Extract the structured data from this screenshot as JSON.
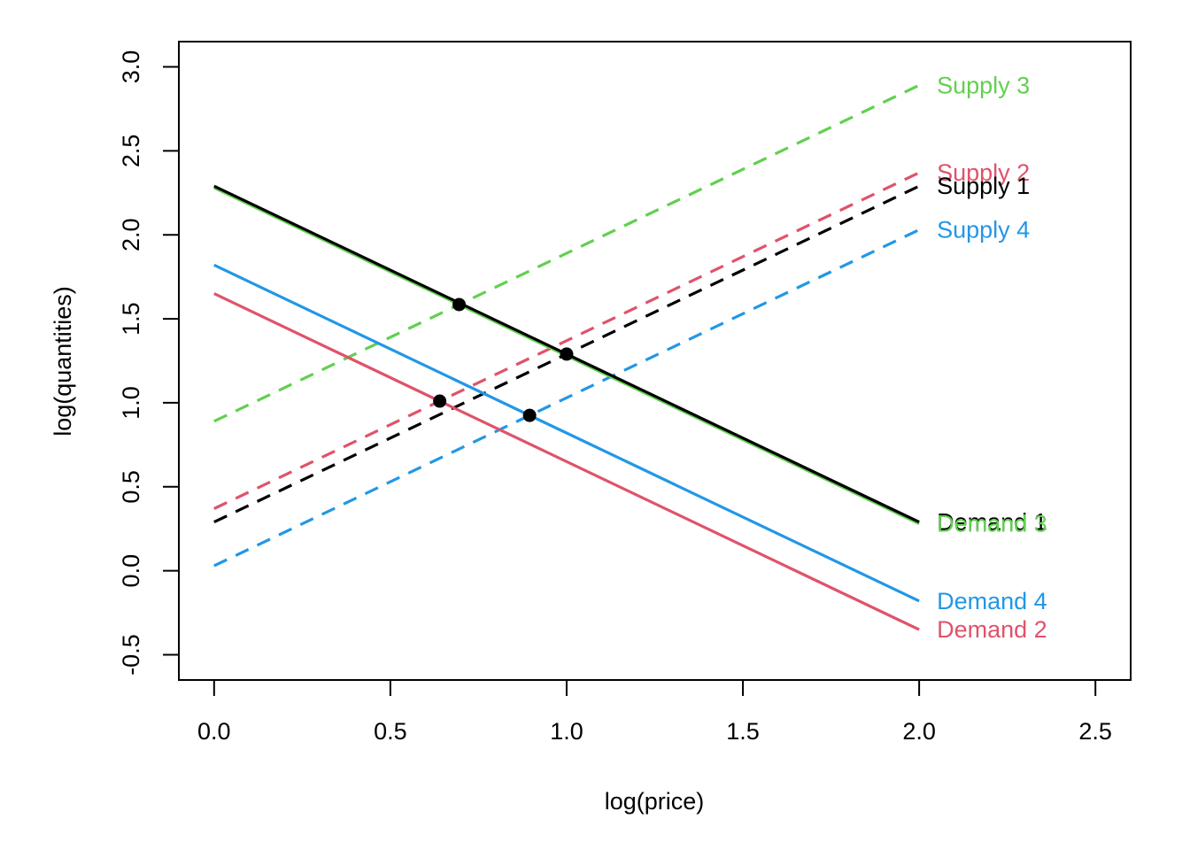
{
  "chart_data": {
    "type": "line",
    "title": "",
    "xlabel": "log(price)",
    "ylabel": "log(quantities)",
    "xlim": [
      -0.1,
      2.6
    ],
    "ylim": [
      -0.65,
      3.15
    ],
    "x_ticks": [
      0.0,
      0.5,
      1.0,
      1.5,
      2.0,
      2.5
    ],
    "x_tick_labels": [
      "0.0",
      "0.5",
      "1.0",
      "1.5",
      "2.0",
      "2.5"
    ],
    "y_ticks": [
      -0.5,
      0.0,
      0.5,
      1.0,
      1.5,
      2.0,
      2.5,
      3.0
    ],
    "y_tick_labels": [
      "-0.5",
      "0.0",
      "0.5",
      "1.0",
      "1.5",
      "2.0",
      "2.5",
      "3.0"
    ],
    "grid": false,
    "legend": "none (direct labels at line ends)",
    "series": [
      {
        "name": "Supply 3",
        "color": "#61D04F",
        "dashed": true,
        "x": [
          0,
          2
        ],
        "y": [
          0.89,
          2.89
        ]
      },
      {
        "name": "Supply 2",
        "color": "#DF536B",
        "dashed": true,
        "x": [
          0,
          2
        ],
        "y": [
          0.37,
          2.37
        ]
      },
      {
        "name": "Supply 1",
        "color": "#000000",
        "dashed": true,
        "x": [
          0,
          2
        ],
        "y": [
          0.29,
          2.29
        ]
      },
      {
        "name": "Supply 4",
        "color": "#2297E6",
        "dashed": true,
        "x": [
          0,
          2
        ],
        "y": [
          0.03,
          2.03
        ]
      },
      {
        "name": "Demand 3",
        "color": "#61D04F",
        "dashed": false,
        "x": [
          0,
          2
        ],
        "y": [
          2.28,
          0.28
        ]
      },
      {
        "name": "Demand 1",
        "color": "#000000",
        "dashed": false,
        "x": [
          0,
          2
        ],
        "y": [
          2.29,
          0.29
        ]
      },
      {
        "name": "Demand 4",
        "color": "#2297E6",
        "dashed": false,
        "x": [
          0,
          2
        ],
        "y": [
          1.82,
          -0.18
        ]
      },
      {
        "name": "Demand 2",
        "color": "#DF536B",
        "dashed": false,
        "x": [
          0,
          2
        ],
        "y": [
          1.65,
          -0.35
        ]
      }
    ],
    "label_order": [
      "Supply 3",
      "Supply 2",
      "Supply 1",
      "Supply 4",
      "Demand 1",
      "Demand 3",
      "Demand 4",
      "Demand 2"
    ],
    "points": [
      {
        "x": 0.695,
        "y": 1.585
      },
      {
        "x": 1.0,
        "y": 1.29
      },
      {
        "x": 0.64,
        "y": 1.01
      },
      {
        "x": 0.895,
        "y": 0.925
      }
    ],
    "point_color": "#000000"
  }
}
